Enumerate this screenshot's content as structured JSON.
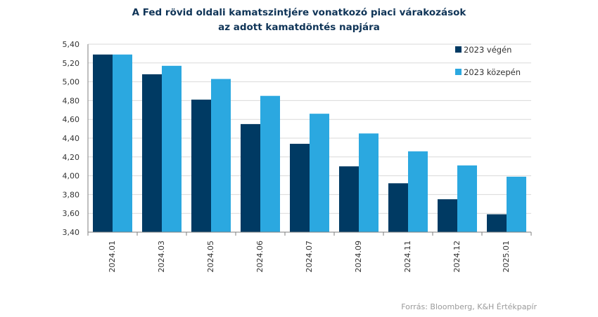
{
  "chart_data": {
    "type": "bar",
    "title_lines": [
      "A Fed rövid oldali kamatszintjére vonatkozó piaci várakozások",
      "az adott kamatdöntés napjára"
    ],
    "categories": [
      "2024.01",
      "2024.03",
      "2024.05",
      "2024.06",
      "2024.07",
      "2024.09",
      "2024.11",
      "2024.12",
      "2025.01"
    ],
    "series": [
      {
        "name": "2023 végén",
        "color": "#003a63",
        "values": [
          5.29,
          5.08,
          4.81,
          4.55,
          4.34,
          4.1,
          3.92,
          3.75,
          3.59
        ]
      },
      {
        "name": "2023 közepén",
        "color": "#2ba8e0",
        "values": [
          5.29,
          5.17,
          5.03,
          4.85,
          4.66,
          4.45,
          4.26,
          4.11,
          3.99
        ]
      }
    ],
    "ylim": [
      3.4,
      5.4
    ],
    "yticks": [
      "5,40",
      "5,20",
      "5,00",
      "4,80",
      "4,60",
      "4,40",
      "4,20",
      "4,00",
      "3,80",
      "3,60",
      "3,40"
    ],
    "ytick_values": [
      5.4,
      5.2,
      5.0,
      4.8,
      4.6,
      4.4,
      4.2,
      4.0,
      3.8,
      3.6,
      3.4
    ],
    "grid": true,
    "legend_position": "top-right",
    "source": "Forrás: Bloomberg, K&H Értékpapír"
  }
}
